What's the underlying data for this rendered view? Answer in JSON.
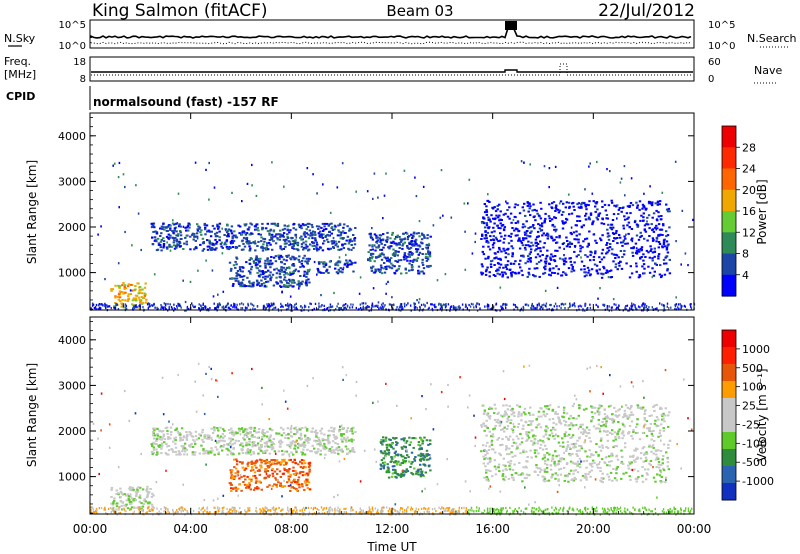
{
  "header": {
    "radar": "King Salmon (fitACF)",
    "beam": "Beam 03",
    "date": "22/Jul/2012"
  },
  "status_panels": {
    "nsky_label": "N.Sky",
    "nsearch_label": "N.Search",
    "freq_label_line1": "Freq.",
    "freq_label_line2": "[MHz]",
    "nave_label": "Nave",
    "cpid_label": "CPID",
    "cpid_text": "normalsound (fast) -157 RF",
    "left_ticks_top": [
      "10^5",
      "10^0"
    ],
    "right_ticks_top": [
      "10^5",
      "10^0"
    ],
    "left_ticks_freq": [
      "18",
      "8"
    ],
    "right_ticks_nave": [
      "60",
      "0"
    ]
  },
  "colors": {
    "power_scale": [
      "#0000ff",
      "#1c45a8",
      "#2e8b57",
      "#66cc33",
      "#f0a800",
      "#ff6600",
      "#ff2a00",
      "#ee0000"
    ],
    "velocity_scale": [
      "#1030c0",
      "#2a64b0",
      "#2f8c3c",
      "#5ecb2a",
      "#c8c8c8",
      "#c8c8c8",
      "#ff9d00",
      "#e8560a",
      "#ff2000",
      "#ee0000"
    ],
    "ground_scatter": "#c0c0c0"
  },
  "chart_data": [
    {
      "type": "heatmap",
      "panel": "power",
      "ylabel": "Slant Range [km]",
      "xlabel": "",
      "colorbar_label": "Power [dB]",
      "colorbar_ticks": [
        "28",
        "24",
        "20",
        "16",
        "12",
        "8",
        "4"
      ],
      "xlim_hours": [
        0,
        24
      ],
      "ylim_km": [
        180,
        4500
      ],
      "y_ticks": [
        "4000",
        "3000",
        "2000",
        "1000"
      ],
      "grid": false,
      "echo_regions": [
        {
          "t0": 0.8,
          "t1": 2.2,
          "r0": 250,
          "r1": 800,
          "level": 4
        },
        {
          "t0": 2.4,
          "t1": 10.5,
          "r0": 1500,
          "r1": 2100,
          "level": 1
        },
        {
          "t0": 5.5,
          "t1": 8.7,
          "r0": 700,
          "r1": 1400,
          "level": 1
        },
        {
          "t0": 9.0,
          "t1": 10.5,
          "r0": 1000,
          "r1": 1300,
          "level": 1
        },
        {
          "t0": 11.0,
          "t1": 13.5,
          "r0": 1000,
          "r1": 1900,
          "level": 1
        },
        {
          "t0": 15.5,
          "t1": 23.0,
          "r0": 900,
          "r1": 2600,
          "level": 0
        }
      ]
    },
    {
      "type": "heatmap",
      "panel": "velocity",
      "ylabel": "Slant Range [km]",
      "xlabel": "Time UT",
      "colorbar_label": "Velocity [m s⁻¹]",
      "colorbar_ticks": [
        "1000",
        "500",
        "100",
        "25",
        "-25",
        "-100",
        "-500",
        "-1000"
      ],
      "xlim_hours": [
        0,
        24
      ],
      "x_ticks": [
        "00:00",
        "04:00",
        "08:00",
        "12:00",
        "16:00",
        "20:00",
        "00:00"
      ],
      "ylim_km": [
        180,
        4500
      ],
      "y_ticks": [
        "4000",
        "3000",
        "2000",
        "1000"
      ],
      "grid": false,
      "echo_regions": [
        {
          "t0": 0.8,
          "t1": 2.5,
          "r0": 250,
          "r1": 800,
          "level": 4
        },
        {
          "t0": 2.4,
          "t1": 10.5,
          "r0": 1500,
          "r1": 2100,
          "level": 4
        },
        {
          "t0": 5.5,
          "t1": 8.7,
          "r0": 700,
          "r1": 1400,
          "level": 7
        },
        {
          "t0": 11.5,
          "t1": 13.5,
          "r0": 1000,
          "r1": 1900,
          "level": 2
        },
        {
          "t0": 15.5,
          "t1": 23.0,
          "r0": 900,
          "r1": 2600,
          "level": 4
        }
      ]
    }
  ]
}
